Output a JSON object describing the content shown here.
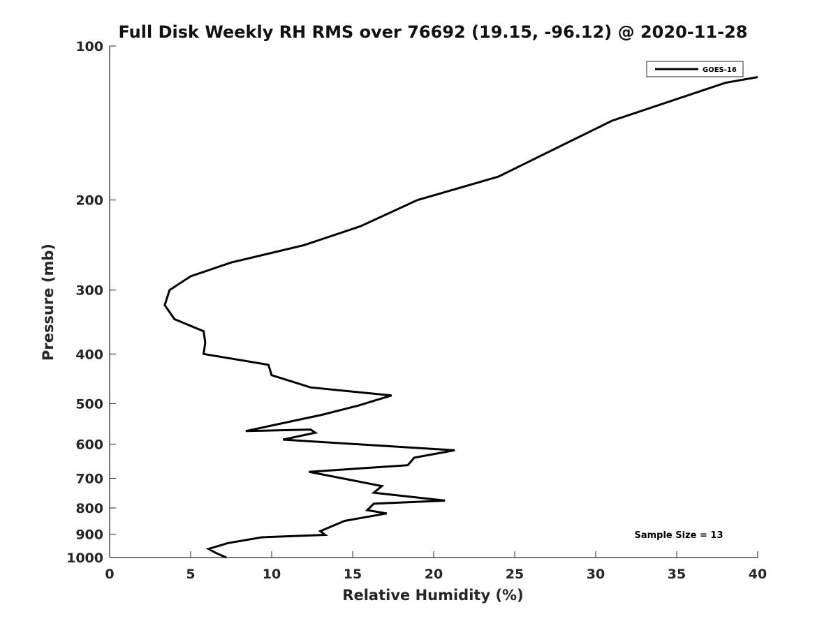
{
  "chart_data": {
    "type": "line",
    "title": "Full Disk Weekly RH RMS over 76692 (19.15, -96.12) @ 2020-11-28",
    "xlabel": "Relative Humidity (%)",
    "ylabel": "Pressure (mb)",
    "xlim": [
      0,
      40
    ],
    "ylim": [
      100,
      1000
    ],
    "y_scale": "log",
    "y_reversed": true,
    "grid": false,
    "xticks": [
      0,
      5,
      10,
      15,
      20,
      25,
      30,
      35,
      40
    ],
    "yticks": [
      100,
      200,
      300,
      400,
      500,
      600,
      700,
      800,
      900,
      1000
    ],
    "legend_position": "top-right",
    "series": [
      {
        "name": "GOES-16",
        "color": "#000000",
        "x": [
          40.0,
          38.0,
          31.0,
          24.0,
          19.0,
          15.5,
          12.0,
          7.5,
          5.0,
          3.7,
          3.4,
          4.0,
          5.8,
          5.9,
          5.8,
          9.8,
          10.0,
          12.4,
          17.4,
          15.3,
          13.1,
          8.4,
          12.4,
          12.7,
          10.7,
          21.3,
          18.8,
          18.4,
          12.3,
          16.8,
          16.3,
          20.7,
          16.3,
          15.9,
          17.1,
          14.5,
          13.0,
          13.3,
          9.4,
          7.3,
          6.1,
          6.6,
          7.2
        ],
        "y": [
          115,
          118,
          140,
          180,
          200,
          225,
          245,
          265,
          282,
          300,
          321,
          342,
          361,
          380,
          400,
          420,
          440,
          465,
          482,
          505,
          526,
          566,
          562,
          570,
          588,
          617,
          638,
          660,
          680,
          725,
          747,
          774,
          785,
          808,
          820,
          848,
          888,
          903,
          913,
          937,
          962,
          981,
          1000
        ]
      }
    ]
  },
  "legend": {
    "label": "GOES-16"
  },
  "annotation": {
    "sample_size": "Sample Size = 13"
  },
  "colors": {
    "line": "#000000",
    "axis": "#262626",
    "background": "#ffffff"
  }
}
